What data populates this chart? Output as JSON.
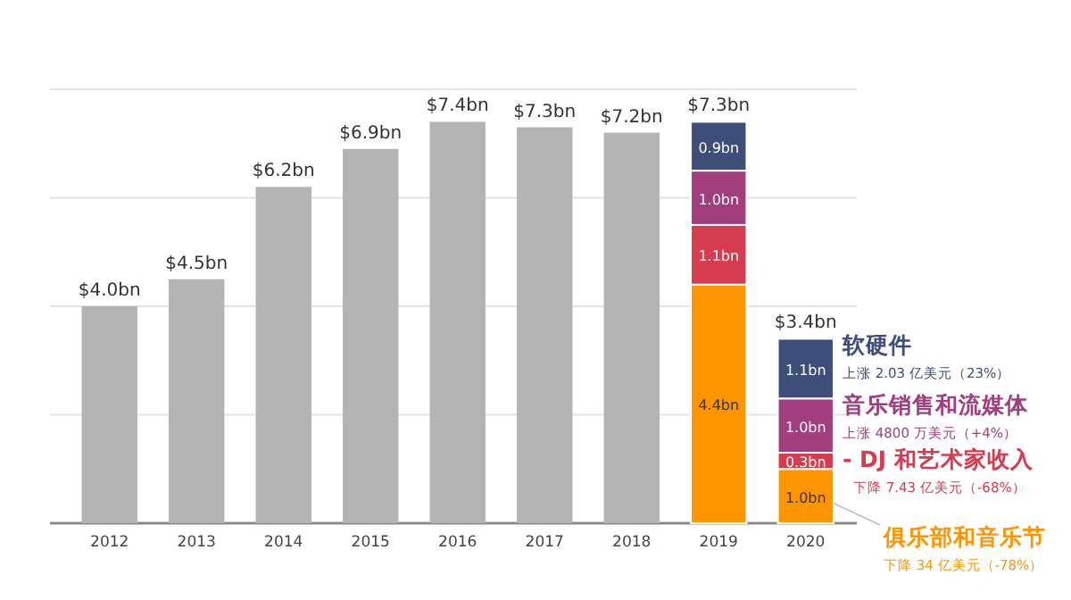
{
  "chart_data": {
    "type": "bar",
    "stacked": true,
    "categories": [
      "2012",
      "2013",
      "2014",
      "2015",
      "2016",
      "2017",
      "2018",
      "2019",
      "2020"
    ],
    "series": [
      {
        "color": "#b4b4b4",
        "values": [
          4.0,
          4.5,
          6.2,
          6.9,
          7.4,
          7.3,
          7.2,
          null,
          null
        ]
      },
      {
        "name": "俱乐部和音乐节",
        "color": "#ff9500",
        "values": [
          null,
          null,
          null,
          null,
          null,
          null,
          null,
          4.4,
          1.0
        ],
        "value_labels": [
          null,
          null,
          null,
          null,
          null,
          null,
          null,
          "4.4bn",
          "1.0bn"
        ]
      },
      {
        "name": "- DJ 和艺术家收入",
        "color": "#d63c4f",
        "values": [
          null,
          null,
          null,
          null,
          null,
          null,
          null,
          1.1,
          0.3
        ],
        "value_labels": [
          null,
          null,
          null,
          null,
          null,
          null,
          null,
          "1.1bn",
          "0.3bn"
        ]
      },
      {
        "name": "音乐销售和流媒体",
        "color": "#a23d7e",
        "values": [
          null,
          null,
          null,
          null,
          null,
          null,
          null,
          1.0,
          1.0
        ],
        "value_labels": [
          null,
          null,
          null,
          null,
          null,
          null,
          null,
          "1.0bn",
          "1.0bn"
        ]
      },
      {
        "name": "软硬件",
        "color": "#3d4e78",
        "values": [
          null,
          null,
          null,
          null,
          null,
          null,
          null,
          0.9,
          1.1
        ],
        "value_labels": [
          null,
          null,
          null,
          null,
          null,
          null,
          null,
          "0.9bn",
          "1.1bn"
        ]
      }
    ],
    "totals": [
      "$4.0bn",
      "$4.5bn",
      "$6.2bn",
      "$6.9bn",
      "$7.4bn",
      "$7.3bn",
      "$7.2bn",
      "$7.3bn",
      "$3.4bn"
    ],
    "annotations": [
      "下降 34 亿美元（-78%）",
      "下降 7.43 亿美元（-68%）",
      "上涨 4800 万美元（+4%）",
      "上涨 2.03 亿美元（23%）"
    ],
    "ylim": [
      0,
      8
    ],
    "yticks": [
      {
        "value": 0,
        "label": null
      },
      {
        "value": 2,
        "label": null
      },
      {
        "value": 4,
        "label": null
      },
      {
        "value": 6,
        "label": null
      },
      {
        "value": 8,
        "label": null
      }
    ],
    "tick_labels": "x",
    "grid": "y",
    "legend": false
  }
}
